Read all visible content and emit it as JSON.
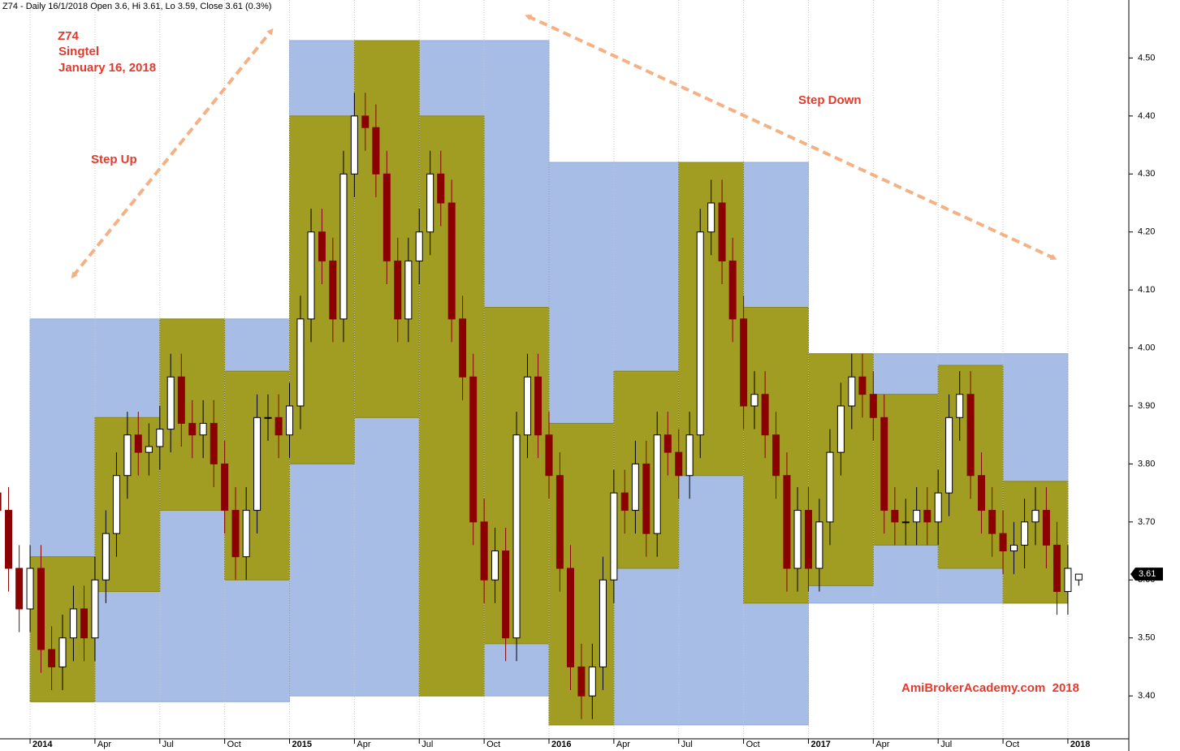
{
  "chart_data": {
    "type": "candlestick",
    "title": "Z74 - Daily 16/1/2018 Open 3.6, Hi 3.61, Lo 3.59, Close 3.61 (0.3%)",
    "annotations": {
      "symbol": "Z74",
      "name": "Singtel",
      "date": "January 16, 2018",
      "step_up": "Step Up",
      "step_down": "Step Down",
      "watermark": "AmiBrokerAcademy.com  2018"
    },
    "up_color": "#000000",
    "down_color": "#8b0000",
    "year_color": "#a7bde6",
    "quarter_color": "#a09d22",
    "x": [
      2013.875,
      2013.917,
      2013.958,
      2014.0,
      2014.042,
      2014.083,
      2014.125,
      2014.167,
      2014.208,
      2014.25,
      2014.292,
      2014.333,
      2014.375,
      2014.417,
      2014.458,
      2014.5,
      2014.542,
      2014.583,
      2014.625,
      2014.667,
      2014.708,
      2014.75,
      2014.792,
      2014.833,
      2014.875,
      2014.917,
      2014.958,
      2015.0,
      2015.042,
      2015.083,
      2015.125,
      2015.167,
      2015.208,
      2015.25,
      2015.292,
      2015.333,
      2015.375,
      2015.417,
      2015.458,
      2015.5,
      2015.542,
      2015.583,
      2015.625,
      2015.667,
      2015.708,
      2015.75,
      2015.792,
      2015.833,
      2015.875,
      2015.917,
      2015.958,
      2016.0,
      2016.042,
      2016.083,
      2016.125,
      2016.167,
      2016.208,
      2016.25,
      2016.292,
      2016.333,
      2016.375,
      2016.417,
      2016.458,
      2016.5,
      2016.542,
      2016.583,
      2016.625,
      2016.667,
      2016.708,
      2016.75,
      2016.792,
      2016.833,
      2016.875,
      2016.917,
      2016.958,
      2017.0,
      2017.042,
      2017.083,
      2017.125,
      2017.167,
      2017.208,
      2017.25,
      2017.292,
      2017.333,
      2017.375,
      2017.417,
      2017.458,
      2017.5,
      2017.542,
      2017.583,
      2017.625,
      2017.667,
      2017.708,
      2017.75,
      2017.792,
      2017.833,
      2017.875,
      2017.917,
      2017.958,
      2018.0,
      2018.042
    ],
    "open": [
      3.75,
      3.72,
      3.62,
      3.55,
      3.62,
      3.48,
      3.45,
      3.5,
      3.55,
      3.5,
      3.6,
      3.68,
      3.78,
      3.85,
      3.82,
      3.83,
      3.86,
      3.95,
      3.87,
      3.85,
      3.87,
      3.8,
      3.72,
      3.64,
      3.72,
      3.88,
      3.88,
      3.85,
      3.9,
      4.05,
      4.2,
      4.15,
      4.05,
      4.3,
      4.4,
      4.38,
      4.3,
      4.15,
      4.05,
      4.15,
      4.2,
      4.3,
      4.25,
      4.05,
      3.95,
      3.7,
      3.6,
      3.65,
      3.5,
      3.85,
      3.95,
      3.85,
      3.78,
      3.62,
      3.45,
      3.4,
      3.45,
      3.6,
      3.75,
      3.72,
      3.8,
      3.68,
      3.85,
      3.82,
      3.78,
      3.85,
      4.2,
      4.25,
      4.15,
      4.05,
      3.9,
      3.92,
      3.85,
      3.78,
      3.62,
      3.72,
      3.62,
      3.7,
      3.82,
      3.9,
      3.95,
      3.92,
      3.88,
      3.72,
      3.7,
      3.7,
      3.72,
      3.7,
      3.75,
      3.88,
      3.92,
      3.78,
      3.72,
      3.68,
      3.65,
      3.66,
      3.7,
      3.72,
      3.66,
      3.58,
      3.6
    ],
    "high": [
      3.79,
      3.76,
      3.66,
      3.66,
      3.66,
      3.52,
      3.54,
      3.59,
      3.59,
      3.64,
      3.72,
      3.82,
      3.89,
      3.89,
      3.87,
      3.9,
      3.99,
      3.99,
      3.91,
      3.91,
      3.91,
      3.84,
      3.76,
      3.76,
      3.92,
      3.92,
      3.92,
      3.94,
      4.09,
      4.24,
      4.24,
      4.19,
      4.34,
      4.44,
      4.44,
      4.42,
      4.34,
      4.19,
      4.19,
      4.24,
      4.34,
      4.34,
      4.29,
      4.09,
      3.99,
      3.74,
      3.69,
      3.69,
      3.89,
      3.99,
      3.99,
      3.89,
      3.82,
      3.66,
      3.49,
      3.49,
      3.64,
      3.79,
      3.79,
      3.84,
      3.84,
      3.89,
      3.89,
      3.86,
      3.89,
      4.24,
      4.29,
      4.29,
      4.19,
      4.09,
      3.96,
      3.96,
      3.89,
      3.82,
      3.76,
      3.76,
      3.74,
      3.86,
      3.94,
      3.99,
      3.99,
      3.96,
      3.92,
      3.76,
      3.74,
      3.76,
      3.76,
      3.79,
      3.92,
      3.96,
      3.96,
      3.82,
      3.76,
      3.72,
      3.7,
      3.74,
      3.76,
      3.76,
      3.7,
      3.66,
      3.61
    ],
    "low": [
      3.68,
      3.58,
      3.51,
      3.51,
      3.44,
      3.41,
      3.41,
      3.46,
      3.46,
      3.46,
      3.56,
      3.64,
      3.74,
      3.78,
      3.78,
      3.79,
      3.82,
      3.83,
      3.81,
      3.81,
      3.76,
      3.68,
      3.6,
      3.6,
      3.68,
      3.84,
      3.81,
      3.81,
      3.86,
      4.01,
      4.11,
      4.01,
      4.01,
      4.26,
      4.34,
      4.26,
      4.11,
      4.01,
      4.01,
      4.11,
      4.16,
      4.21,
      4.01,
      3.91,
      3.66,
      3.56,
      3.56,
      3.46,
      3.46,
      3.81,
      3.81,
      3.74,
      3.58,
      3.41,
      3.36,
      3.36,
      3.41,
      3.56,
      3.68,
      3.68,
      3.64,
      3.64,
      3.78,
      3.74,
      3.74,
      3.81,
      4.16,
      4.11,
      4.01,
      3.86,
      3.86,
      3.81,
      3.74,
      3.58,
      3.58,
      3.58,
      3.58,
      3.66,
      3.78,
      3.86,
      3.88,
      3.84,
      3.68,
      3.66,
      3.66,
      3.66,
      3.66,
      3.66,
      3.71,
      3.84,
      3.74,
      3.68,
      3.64,
      3.61,
      3.61,
      3.62,
      3.66,
      3.62,
      3.54,
      3.54,
      3.59
    ],
    "close": [
      3.72,
      3.62,
      3.55,
      3.62,
      3.48,
      3.45,
      3.5,
      3.55,
      3.5,
      3.6,
      3.68,
      3.78,
      3.85,
      3.82,
      3.83,
      3.86,
      3.95,
      3.87,
      3.85,
      3.87,
      3.8,
      3.72,
      3.64,
      3.72,
      3.88,
      3.88,
      3.85,
      3.9,
      4.05,
      4.2,
      4.15,
      4.05,
      4.3,
      4.4,
      4.38,
      4.3,
      4.15,
      4.05,
      4.15,
      4.2,
      4.3,
      4.25,
      4.05,
      3.95,
      3.7,
      3.6,
      3.65,
      3.5,
      3.85,
      3.95,
      3.85,
      3.78,
      3.62,
      3.45,
      3.4,
      3.45,
      3.6,
      3.75,
      3.72,
      3.8,
      3.68,
      3.85,
      3.82,
      3.78,
      3.85,
      4.2,
      4.25,
      4.15,
      4.05,
      3.9,
      3.92,
      3.85,
      3.78,
      3.62,
      3.72,
      3.62,
      3.7,
      3.82,
      3.9,
      3.95,
      3.92,
      3.88,
      3.72,
      3.7,
      3.7,
      3.72,
      3.7,
      3.75,
      3.88,
      3.92,
      3.78,
      3.72,
      3.68,
      3.65,
      3.66,
      3.7,
      3.72,
      3.66,
      3.58,
      3.62,
      3.61
    ],
    "boxes": {
      "year": [
        {
          "x0": 2014.0,
          "x1": 2015.0,
          "high": 4.05,
          "low": 3.39
        },
        {
          "x0": 2015.0,
          "x1": 2016.0,
          "high": 4.53,
          "low": 3.4
        },
        {
          "x0": 2016.0,
          "x1": 2017.0,
          "high": 4.32,
          "low": 3.35
        },
        {
          "x0": 2017.0,
          "x1": 2018.0,
          "high": 3.99,
          "low": 3.56
        }
      ],
      "quarter": [
        {
          "x0": 2014.0,
          "x1": 2014.25,
          "high": 3.64,
          "low": 3.39
        },
        {
          "x0": 2014.25,
          "x1": 2014.5,
          "high": 3.88,
          "low": 3.58
        },
        {
          "x0": 2014.5,
          "x1": 2014.75,
          "high": 4.05,
          "low": 3.72
        },
        {
          "x0": 2014.75,
          "x1": 2015.0,
          "high": 3.96,
          "low": 3.6
        },
        {
          "x0": 2015.0,
          "x1": 2015.25,
          "high": 4.4,
          "low": 3.8
        },
        {
          "x0": 2015.25,
          "x1": 2015.5,
          "high": 4.53,
          "low": 3.88
        },
        {
          "x0": 2015.5,
          "x1": 2015.75,
          "high": 4.4,
          "low": 3.4
        },
        {
          "x0": 2015.75,
          "x1": 2016.0,
          "high": 4.07,
          "low": 3.49
        },
        {
          "x0": 2016.0,
          "x1": 2016.25,
          "high": 3.87,
          "low": 3.35
        },
        {
          "x0": 2016.25,
          "x1": 2016.5,
          "high": 3.96,
          "low": 3.62
        },
        {
          "x0": 2016.5,
          "x1": 2016.75,
          "high": 4.32,
          "low": 3.78
        },
        {
          "x0": 2016.75,
          "x1": 2017.0,
          "high": 4.07,
          "low": 3.56
        },
        {
          "x0": 2017.0,
          "x1": 2017.25,
          "high": 3.99,
          "low": 3.59
        },
        {
          "x0": 2017.25,
          "x1": 2017.5,
          "high": 3.92,
          "low": 3.66
        },
        {
          "x0": 2017.5,
          "x1": 2017.75,
          "high": 3.97,
          "low": 3.62
        },
        {
          "x0": 2017.75,
          "x1": 2018.0,
          "high": 3.77,
          "low": 3.56
        }
      ]
    },
    "last_price": 3.61,
    "xlim": [
      2013.884,
      2018.235
    ],
    "ylim": [
      3.326,
      4.6
    ],
    "xticks": [
      2014,
      {
        "value": 2014.25,
        "label": "Apr"
      },
      {
        "value": 2014.5,
        "label": "Jul"
      },
      {
        "value": 2014.75,
        "label": "Oct"
      },
      2015,
      {
        "value": 2015.25,
        "label": "Apr"
      },
      {
        "value": 2015.5,
        "label": "Jul"
      },
      {
        "value": 2015.75,
        "label": "Oct"
      },
      2016,
      {
        "value": 2016.25,
        "label": "Apr"
      },
      {
        "value": 2016.5,
        "label": "Jul"
      },
      {
        "value": 2016.75,
        "label": "Oct"
      },
      2017,
      {
        "value": 2017.25,
        "label": "Apr"
      },
      {
        "value": 2017.5,
        "label": "Jul"
      },
      {
        "value": 2017.75,
        "label": "Oct"
      },
      2018
    ],
    "yticks": [
      {
        "value": 3.4,
        "label": "3.40"
      },
      {
        "value": 3.5,
        "label": "3.50"
      },
      {
        "value": 3.6,
        "label": "3.60"
      },
      {
        "value": 3.7,
        "label": "3.70"
      },
      {
        "value": 3.8,
        "label": "3.80"
      },
      {
        "value": 3.9,
        "label": "3.90"
      },
      {
        "value": 4.0,
        "label": "4.00"
      },
      {
        "value": 4.1,
        "label": "4.10"
      },
      {
        "value": 4.2,
        "label": "4.20"
      },
      {
        "value": 4.3,
        "label": "4.30"
      },
      {
        "value": 4.4,
        "label": "4.40"
      },
      {
        "value": 4.5,
        "label": "4.50"
      }
    ],
    "grid": true
  }
}
